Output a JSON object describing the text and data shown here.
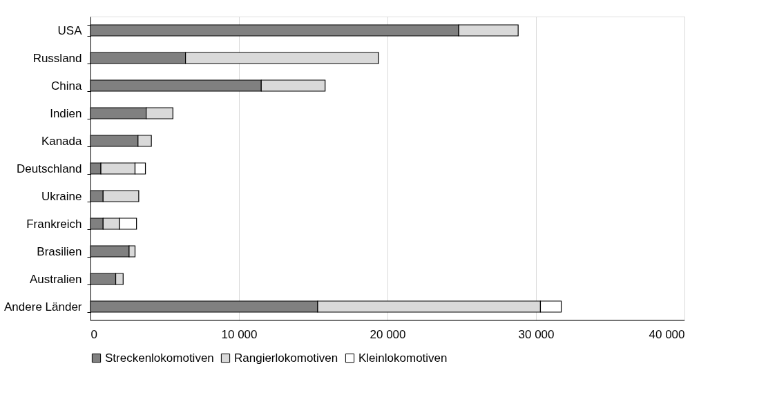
{
  "chart_data": {
    "type": "bar",
    "orientation": "horizontal",
    "stacked": true,
    "categories": [
      "USA",
      "Russland",
      "China",
      "Indien",
      "Kanada",
      "Deutschland",
      "Ukraine",
      "Frankreich",
      "Brasilien",
      "Australien",
      "Andere Länder"
    ],
    "series": [
      {
        "name": "Streckenlokomotiven",
        "color": "#808080",
        "values": [
          24800,
          6400,
          11500,
          3750,
          3200,
          700,
          850,
          850,
          2600,
          1700,
          15300
        ]
      },
      {
        "name": "Rangierlokomotiven",
        "color": "#d9d9d9",
        "values": [
          4000,
          13000,
          4300,
          1800,
          900,
          2300,
          2400,
          1100,
          400,
          500,
          15000
        ]
      },
      {
        "name": "Kleinlokomotiven",
        "color": "#ffffff",
        "values": [
          null,
          null,
          null,
          null,
          null,
          700,
          null,
          1150,
          null,
          null,
          1400
        ]
      }
    ],
    "xlim": [
      0,
      40000
    ],
    "xticks": [
      0,
      {
        "value": 10000,
        "label": "10 000"
      },
      {
        "value": 20000,
        "label": "20 000"
      },
      {
        "value": 30000,
        "label": "30 000"
      },
      {
        "value": 40000,
        "label": "40 000"
      }
    ],
    "grid": "x",
    "legend": "bottom"
  }
}
